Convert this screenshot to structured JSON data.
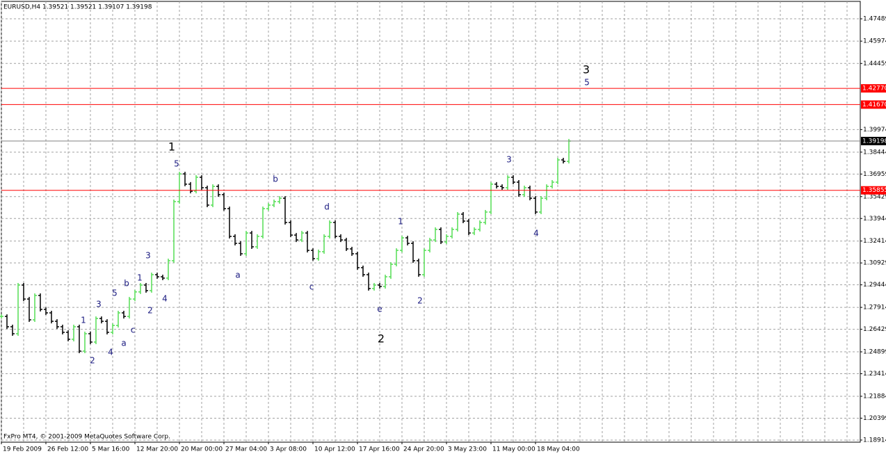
{
  "chart_data": {
    "type": "bar-chart",
    "title": "EURUSD,H4  1.39521 1.39521 1.39107 1.39198",
    "footer": "FxPro MT4, © 2001-2009 MetaQuotes Software Corp.",
    "up_color": "#55dd55",
    "down_color": "#000000",
    "grid": true,
    "ylim": [
      1.1877,
      1.4867
    ],
    "yticks": [
      1.47489,
      1.45974,
      1.44459,
      1.39974,
      1.38444,
      1.36959,
      1.35429,
      1.33944,
      1.32414,
      1.30929,
      1.29444,
      1.27914,
      1.26429,
      1.24899,
      1.23414,
      1.21884,
      1.20399,
      1.18914
    ],
    "xticks": [
      {
        "value": 0,
        "label": "19 Feb 2009"
      },
      {
        "value": 8,
        "label": "26 Feb 12:00"
      },
      {
        "value": 16,
        "label": "5 Mar 16:00"
      },
      {
        "value": 24,
        "label": "12 Mar 20:00"
      },
      {
        "value": 32,
        "label": "20 Mar 00:00"
      },
      {
        "value": 40,
        "label": "27 Mar 04:00"
      },
      {
        "value": 48,
        "label": "3 Apr 08:00"
      },
      {
        "value": 56,
        "label": "10 Apr 12:00"
      },
      {
        "value": 64,
        "label": "17 Apr 16:00"
      },
      {
        "value": 72,
        "label": "24 Apr 20:00"
      },
      {
        "value": 80,
        "label": "3 May 23:00"
      },
      {
        "value": 88,
        "label": "11 May 00:00"
      },
      {
        "value": 96,
        "label": "18 May 04:00"
      }
    ],
    "close": [
      1.273,
      1.266,
      1.2613,
      1.2943,
      1.2848,
      1.2707,
      1.2872,
      1.2778,
      1.2754,
      1.2697,
      1.266,
      1.2622,
      1.2575,
      1.266,
      1.2495,
      1.2613,
      1.2556,
      1.2716,
      1.2697,
      1.2622,
      1.2669,
      1.2754,
      1.273,
      1.2848,
      1.2896,
      1.2943,
      1.2905,
      1.3013,
      1.2999,
      1.299,
      1.3108,
      1.3509,
      1.3697,
      1.3627,
      1.3579,
      1.3674,
      1.3603,
      1.3485,
      1.3612,
      1.3556,
      1.3461,
      1.3273,
      1.3226,
      1.3155,
      1.3296,
      1.3202,
      1.3273,
      1.3461,
      1.3485,
      1.3509,
      1.3532,
      1.3367,
      1.3282,
      1.3249,
      1.3296,
      1.3178,
      1.3122,
      1.3169,
      1.3273,
      1.3367,
      1.3273,
      1.3249,
      1.3188,
      1.3155,
      1.3061,
      1.3013,
      1.2919,
      1.2943,
      1.2933,
      1.2999,
      1.3084,
      1.3178,
      1.3263,
      1.3226,
      1.3108,
      1.3013,
      1.3178,
      1.3249,
      1.332,
      1.3235,
      1.3273,
      1.332,
      1.3424,
      1.3377,
      1.3296,
      1.332,
      1.3367,
      1.3438,
      1.3627,
      1.3612,
      1.3603,
      1.3674,
      1.3641,
      1.3556,
      1.3603,
      1.3532,
      1.3438,
      1.3532,
      1.3612,
      1.3641,
      1.3792,
      1.3782,
      1.39198
    ],
    "levels": [
      {
        "value": 1.4277,
        "label": "1.42770",
        "color": "#ff0000"
      },
      {
        "value": 1.4167,
        "label": "1.41670",
        "color": "#ff0000"
      },
      {
        "value": 1.35855,
        "label": "1.35855",
        "color": "#ff0000"
      }
    ],
    "last_price": {
      "value": 1.39198,
      "label": "1.39198",
      "color": "#808080"
    },
    "annotations": [
      "1",
      "5",
      "b",
      "d",
      "a",
      "c",
      "e",
      "2",
      "1",
      "2",
      "3",
      "4",
      "3",
      "5",
      "1",
      "3",
      "5",
      "b",
      "1",
      "3",
      "4",
      "2",
      "c",
      "a",
      "2",
      "4"
    ]
  }
}
